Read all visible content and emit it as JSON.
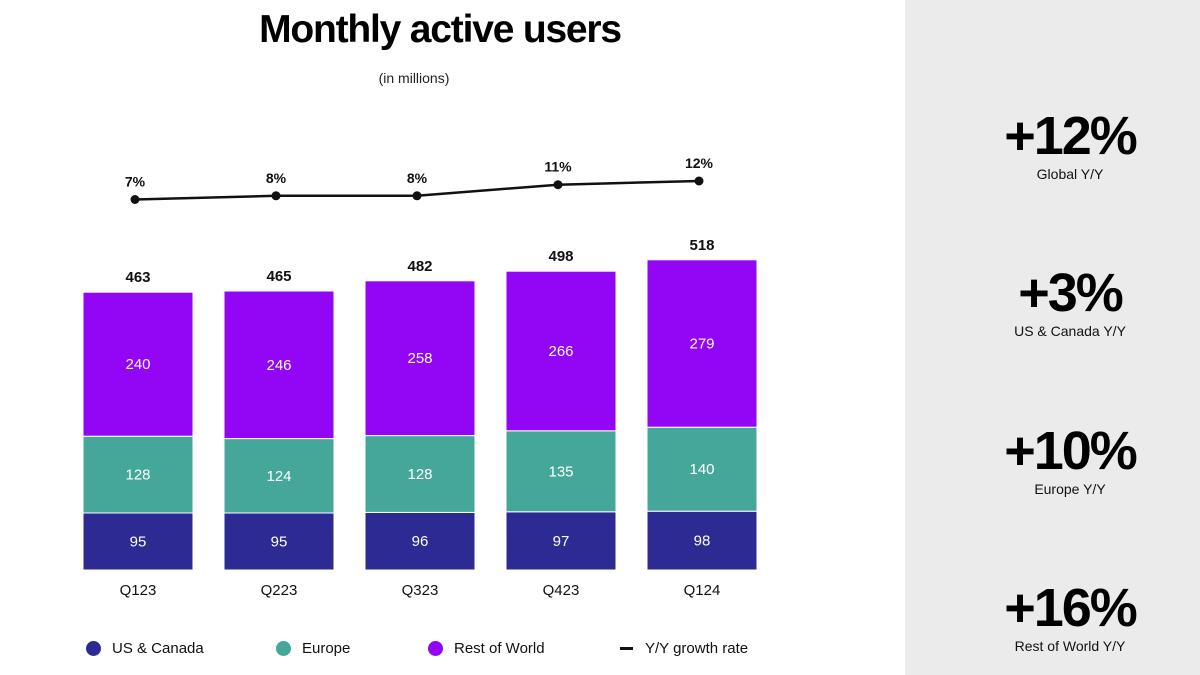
{
  "title": "Monthly active users",
  "subtitle": "(in millions)",
  "colors": {
    "us_canada": "#2e2a94",
    "europe": "#45a79a",
    "rest_of_world": "#9305f5",
    "growth_line": "#111111"
  },
  "chart_data": {
    "type": "bar",
    "stacked": true,
    "title": "Monthly active users",
    "subtitle": "(in millions)",
    "categories": [
      "Q123",
      "Q223",
      "Q323",
      "Q423",
      "Q124"
    ],
    "series": [
      {
        "name": "US & Canada",
        "values": [
          95,
          95,
          96,
          97,
          98
        ]
      },
      {
        "name": "Europe",
        "values": [
          128,
          124,
          128,
          135,
          140
        ]
      },
      {
        "name": "Rest of World",
        "values": [
          240,
          246,
          258,
          266,
          279
        ]
      }
    ],
    "totals": [
      "463",
      "465",
      "482",
      "498",
      "518"
    ],
    "growth": {
      "name": "Y/Y growth rate",
      "type": "line",
      "values": [
        7,
        8,
        8,
        11,
        12
      ],
      "labels": [
        "7%",
        "8%",
        "8%",
        "11%",
        "12%"
      ]
    },
    "legend": [
      "US & Canada",
      "Europe",
      "Rest of World",
      "Y/Y growth rate"
    ],
    "legend_position": "bottom"
  },
  "legend": [
    {
      "label": "US & Canada",
      "kind": "dot",
      "color_key": "us_canada"
    },
    {
      "label": "Europe",
      "kind": "dot",
      "color_key": "europe"
    },
    {
      "label": "Rest of World",
      "kind": "dot",
      "color_key": "rest_of_world"
    },
    {
      "label": "Y/Y growth rate",
      "kind": "line",
      "color_key": "growth_line"
    }
  ],
  "stats": [
    {
      "value": "+12%",
      "label": "Global Y/Y"
    },
    {
      "value": "+3%",
      "label": "US & Canada Y/Y"
    },
    {
      "value": "+10%",
      "label": "Europe Y/Y"
    },
    {
      "value": "+16%",
      "label": "Rest of World Y/Y"
    }
  ]
}
